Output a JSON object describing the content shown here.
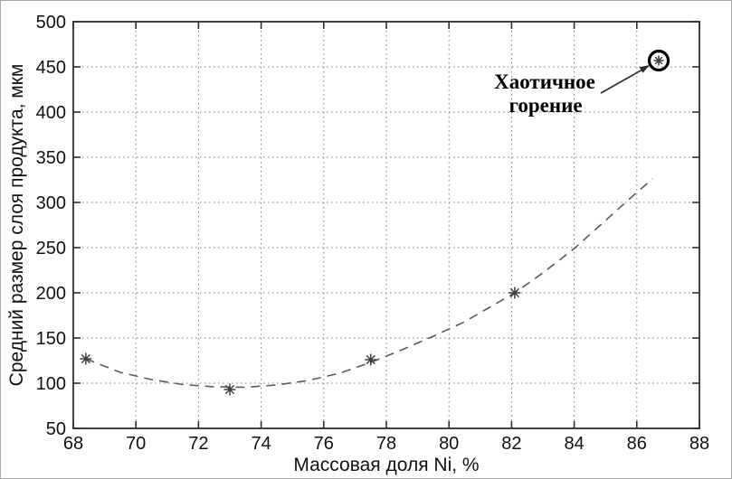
{
  "chart_data": {
    "type": "scatter",
    "title": "",
    "xlabel": "Массовая доля Ni, %",
    "ylabel": "Средний размер слоя продукта, мкм",
    "xlim": [
      68,
      88
    ],
    "ylim": [
      50,
      500
    ],
    "xticks": [
      68,
      70,
      72,
      74,
      76,
      78,
      80,
      82,
      84,
      86,
      88
    ],
    "yticks": [
      50,
      100,
      150,
      200,
      250,
      300,
      350,
      400,
      450,
      500
    ],
    "grid": true,
    "grid_style": "dotted",
    "legend": "none",
    "series": [
      {
        "name": "experimental-points",
        "marker": "asterisk",
        "x": [
          68.4,
          73.0,
          77.5,
          82.1
        ],
        "y": [
          127,
          93,
          126,
          200
        ]
      },
      {
        "name": "chaotic-combustion-point",
        "marker": "circled-asterisk",
        "x": [
          86.7
        ],
        "y": [
          457
        ]
      }
    ],
    "fit_curve": {
      "style": "dashed",
      "points": [
        [
          68.4,
          127
        ],
        [
          69.5,
          112
        ],
        [
          70.5,
          104
        ],
        [
          71.5,
          98.5
        ],
        [
          72.5,
          96
        ],
        [
          73.5,
          95.5
        ],
        [
          74.5,
          98
        ],
        [
          75.5,
          103
        ],
        [
          76.5,
          111
        ],
        [
          77.5,
          123
        ],
        [
          78.5,
          137
        ],
        [
          79.5,
          152
        ],
        [
          80.5,
          168
        ],
        [
          81.3,
          184
        ],
        [
          82.1,
          200
        ],
        [
          83.0,
          222
        ],
        [
          84.0,
          249
        ],
        [
          85.0,
          280
        ],
        [
          85.8,
          305
        ],
        [
          86.5,
          326
        ]
      ]
    },
    "annotation": {
      "line1": "Хаотичное",
      "line2": "горение",
      "target_x": 86.7,
      "target_y": 457
    },
    "colors": {
      "axis": "#2e2e2e",
      "grid": "#7d7d7d",
      "curve": "#5a5a5a",
      "marker": "#3f3f3f",
      "annotation": "#000000",
      "background": "#ffffff"
    }
  }
}
